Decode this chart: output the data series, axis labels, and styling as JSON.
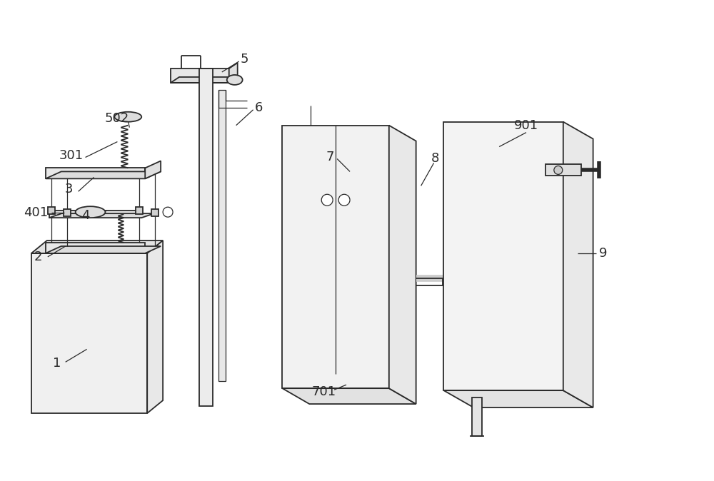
{
  "bg_color": "#ffffff",
  "line_color": "#2a2a2a",
  "lw": 1.3,
  "tlw": 0.9,
  "figsize": [
    10.0,
    6.74
  ],
  "dpi": 100
}
